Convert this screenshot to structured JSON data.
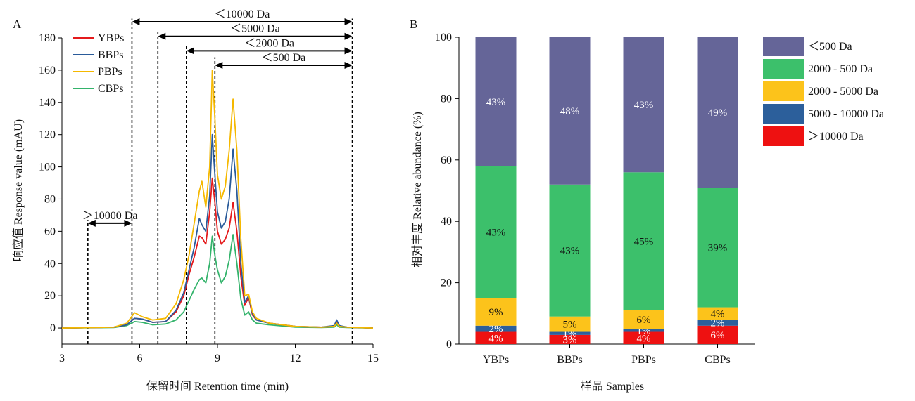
{
  "chart_data": [
    {
      "panel_label": "A",
      "type": "line",
      "xlabel": "保留时间 Retention time (min)",
      "ylabel": "响应值 Response value (mAU)",
      "xlim": [
        3,
        15
      ],
      "ylim": [
        -10,
        180
      ],
      "xticks": [
        "3",
        "6",
        "9",
        "12",
        "15"
      ],
      "yticks": [
        "0",
        "20",
        "40",
        "60",
        "80",
        "100",
        "120",
        "140",
        "160",
        "180"
      ],
      "legend_position": "top-left",
      "series": [
        {
          "name": "YBPs",
          "color": "#e41a1c",
          "x": [
            3,
            5,
            5.5,
            5.8,
            6.1,
            6.5,
            7.0,
            7.4,
            7.7,
            7.9,
            8.1,
            8.3,
            8.4,
            8.55,
            8.7,
            8.8,
            8.9,
            9.0,
            9.15,
            9.3,
            9.45,
            9.6,
            9.75,
            9.9,
            10.05,
            10.2,
            10.35,
            10.5,
            11,
            12,
            13,
            13.5,
            13.6,
            13.7,
            14,
            15
          ],
          "y": [
            0,
            0.5,
            2,
            6,
            5.5,
            3.5,
            4,
            10,
            20,
            33,
            44,
            57,
            56,
            52,
            72,
            93,
            78,
            60,
            52,
            55,
            62,
            78,
            60,
            32,
            14,
            19,
            8,
            5,
            3,
            1,
            0.5,
            1,
            4,
            1,
            0.5,
            0
          ]
        },
        {
          "name": "BBPs",
          "color": "#2a5b9a",
          "x": [
            3,
            5,
            5.5,
            5.8,
            6.1,
            6.5,
            7.0,
            7.4,
            7.7,
            7.9,
            8.1,
            8.3,
            8.4,
            8.55,
            8.7,
            8.8,
            8.9,
            9.0,
            9.15,
            9.3,
            9.45,
            9.6,
            9.75,
            9.9,
            10.05,
            10.2,
            10.35,
            10.5,
            11,
            12,
            13,
            13.5,
            13.6,
            13.7,
            14,
            15
          ],
          "y": [
            0,
            0.5,
            2,
            6,
            5.5,
            3.5,
            4,
            11,
            22,
            36,
            50,
            68,
            64,
            60,
            82,
            120,
            95,
            72,
            62,
            66,
            80,
            111,
            85,
            40,
            16,
            20,
            9,
            5,
            3,
            1,
            0.5,
            1.5,
            5,
            1.5,
            0.5,
            0
          ]
        },
        {
          "name": "PBPs",
          "color": "#f5b800",
          "x": [
            3,
            5,
            5.5,
            5.8,
            6.1,
            6.5,
            7.0,
            7.4,
            7.7,
            7.9,
            8.1,
            8.3,
            8.4,
            8.55,
            8.7,
            8.8,
            8.9,
            9.0,
            9.15,
            9.3,
            9.45,
            9.6,
            9.75,
            9.9,
            10.05,
            10.2,
            10.35,
            10.5,
            11,
            12,
            13,
            13.5,
            13.6,
            13.7,
            14,
            15
          ],
          "y": [
            0,
            0.5,
            3,
            9.5,
            7,
            5,
            6,
            15,
            30,
            45,
            65,
            85,
            91,
            75,
            100,
            160,
            130,
            95,
            80,
            88,
            110,
            142,
            110,
            55,
            20,
            21,
            10,
            6,
            3,
            1,
            0.5,
            1,
            3,
            1,
            0.5,
            0
          ]
        },
        {
          "name": "CBPs",
          "color": "#33b36b",
          "x": [
            3,
            5,
            5.5,
            5.8,
            6.1,
            6.5,
            7.0,
            7.4,
            7.7,
            7.9,
            8.1,
            8.3,
            8.4,
            8.55,
            8.7,
            8.8,
            8.9,
            9.0,
            9.15,
            9.3,
            9.45,
            9.6,
            9.75,
            9.9,
            10.05,
            10.2,
            10.35,
            10.5,
            11,
            12,
            13,
            13.5,
            13.6,
            13.7,
            14,
            15
          ],
          "y": [
            0,
            0.3,
            1.5,
            4,
            3.5,
            2,
            2.5,
            5,
            10,
            17,
            24,
            30,
            31,
            28,
            40,
            57,
            45,
            36,
            28,
            32,
            42,
            58,
            40,
            18,
            8,
            10,
            5,
            3,
            2,
            0.5,
            0.3,
            0.5,
            2,
            0.5,
            0.3,
            0
          ]
        }
      ],
      "annotations": [
        {
          "label": "＜10000 Da",
          "from": 5.7,
          "to": 14.2,
          "y": 190
        },
        {
          "label": "＜5000 Da",
          "from": 6.7,
          "to": 14.2,
          "y": 181
        },
        {
          "label": "＜2000 Da",
          "from": 7.8,
          "to": 14.2,
          "y": 172
        },
        {
          "label": "＜500 Da",
          "from": 8.9,
          "to": 14.2,
          "y": 163
        },
        {
          "label": "＞10000 Da",
          "from": 4.0,
          "to": 5.7,
          "y": 65
        }
      ],
      "vlines": [
        {
          "x": 4.0,
          "top": 67
        },
        {
          "x": 5.7,
          "top": 192
        },
        {
          "x": 6.7,
          "top": 185
        },
        {
          "x": 7.8,
          "top": 175
        },
        {
          "x": 8.9,
          "top": 168
        },
        {
          "x": 14.2,
          "top": 192
        }
      ]
    },
    {
      "panel_label": "B",
      "type": "bar",
      "stacked": true,
      "xlabel": "样品 Samples",
      "ylabel": "相对丰度 Relative abundance (%)",
      "ylim": [
        0,
        100
      ],
      "yticks": [
        "0",
        "20",
        "40",
        "60",
        "80",
        "100"
      ],
      "categories": [
        "YBPs",
        "BBPs",
        "PBPs",
        "CBPs"
      ],
      "legend_position": "right",
      "series": [
        {
          "name": "＞10000 Da",
          "color": "#ee1111",
          "values": [
            4,
            3,
            4,
            6
          ],
          "labels": [
            "4%",
            "3%",
            "4%",
            "6%"
          ]
        },
        {
          "name": "5000 - 10000 Da",
          "color": "#2c5f9b",
          "values": [
            2,
            1,
            1,
            2
          ],
          "labels": [
            "2%",
            "1%",
            "1%",
            "2%"
          ]
        },
        {
          "name": "2000 - 5000 Da",
          "color": "#fcc31b",
          "values": [
            9,
            5,
            6,
            4
          ],
          "labels": [
            "9%",
            "5%",
            "6%",
            "4%"
          ]
        },
        {
          "name": "2000 - 500 Da",
          "color": "#3cc06b",
          "values": [
            43,
            43,
            45,
            39
          ],
          "labels": [
            "43%",
            "43%",
            "45%",
            "39%"
          ]
        },
        {
          "name": "＜500 Da",
          "color": "#656598",
          "values": [
            43,
            48,
            43,
            49
          ],
          "labels": [
            "43%",
            "48%",
            "43%",
            "49%"
          ]
        }
      ],
      "legend_order": [
        "＜500 Da",
        "2000 - 500 Da",
        "2000 - 5000 Da",
        "5000 - 10000 Da",
        "＞10000 Da"
      ]
    }
  ]
}
